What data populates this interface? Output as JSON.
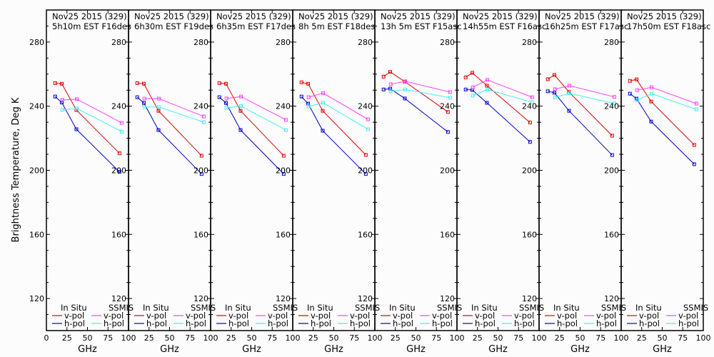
{
  "chart_data": {
    "type": "line",
    "ylabel": "Brightness Temperature, Deg K",
    "xlabel": "GHz",
    "xlim": [
      0,
      100
    ],
    "ylim": [
      100,
      300
    ],
    "xticks": [
      0,
      25,
      50,
      75,
      100
    ],
    "yticks": [
      120,
      160,
      200,
      240,
      280
    ],
    "grid": false,
    "legend": {
      "placement": "bottom",
      "group_insitu": "In Situ",
      "group_ssmis": "SSMIS",
      "entries": [
        {
          "group": "In Situ",
          "label": "v-pol",
          "color": "#e00000"
        },
        {
          "group": "In Situ",
          "label": "h-pol",
          "color": "#0000d0"
        },
        {
          "group": "SSMIS",
          "label": "v-pol",
          "color": "#ff40ff"
        },
        {
          "group": "SSMIS",
          "label": "h-pol",
          "color": "#40f0f0"
        }
      ]
    },
    "insitu_freqs": [
      10.65,
      18.7,
      36.5,
      89
    ],
    "ssmis_freqs": [
      19.35,
      37,
      91.65
    ],
    "panels": [
      {
        "title_line1": "Nov25 2015 (329)",
        "title_line2": "5h10m EST F16des",
        "series": [
          {
            "name": "In Situ v-pol",
            "color": "#e00000",
            "values": [
              254.4,
              254.0,
              237.6,
              210.6
            ]
          },
          {
            "name": "In Situ h-pol",
            "color": "#0000d0",
            "values": [
              246.0,
              242.3,
              225.6,
              199.0
            ]
          },
          {
            "name": "SSMIS v-pol",
            "color": "#ff40ff",
            "values": [
              243.9,
              244.4,
              229.6
            ]
          },
          {
            "name": "SSMIS h-pol",
            "color": "#40f0f0",
            "values": [
              237.6,
              238.6,
              224.2
            ]
          }
        ]
      },
      {
        "title_line1": "Nov25 2015 (329)",
        "title_line2": "6h30m EST F19des",
        "series": [
          {
            "name": "In Situ v-pol",
            "color": "#e00000",
            "values": [
              254.4,
              254.0,
              237.1,
              209.1
            ]
          },
          {
            "name": "In Situ h-pol",
            "color": "#0000d0",
            "values": [
              245.6,
              242.0,
              225.1,
              197.7
            ]
          },
          {
            "name": "SSMIS v-pol",
            "color": "#ff40ff",
            "values": [
              244.7,
              244.7,
              233.6
            ]
          },
          {
            "name": "SSMIS h-pol",
            "color": "#40f0f0",
            "values": [
              239.5,
              239.5,
              230.0
            ]
          }
        ]
      },
      {
        "title_line1": "Nov25 2015 (329)",
        "title_line2": "6h35m EST F17des",
        "series": [
          {
            "name": "In Situ v-pol",
            "color": "#e00000",
            "values": [
              254.4,
              254.0,
              237.1,
              209.1
            ]
          },
          {
            "name": "In Situ h-pol",
            "color": "#0000d0",
            "values": [
              245.6,
              242.0,
              225.1,
              197.7
            ]
          },
          {
            "name": "SSMIS v-pol",
            "color": "#ff40ff",
            "values": [
              244.8,
              246.0,
              231.5
            ]
          },
          {
            "name": "SSMIS h-pol",
            "color": "#40f0f0",
            "values": [
              239.0,
              240.1,
              225.1
            ]
          }
        ]
      },
      {
        "title_line1": "Nov25 2015 (329)",
        "title_line2": "8h 5m EST F18des",
        "series": [
          {
            "name": "In Situ v-pol",
            "color": "#e00000",
            "values": [
              254.9,
              254.0,
              237.1,
              209.6
            ]
          },
          {
            "name": "In Situ h-pol",
            "color": "#0000d0",
            "values": [
              246.0,
              241.6,
              224.7,
              197.7
            ]
          },
          {
            "name": "SSMIS v-pol",
            "color": "#ff40ff",
            "values": [
              245.6,
              248.2,
              231.8
            ]
          },
          {
            "name": "SSMIS h-pol",
            "color": "#40f0f0",
            "values": [
              239.9,
              242.1,
              225.6
            ]
          }
        ]
      },
      {
        "title_line1": "Nov25 2015 (329)",
        "title_line2": "13h 5m EST F15asc",
        "series": [
          {
            "name": "In Situ v-pol",
            "color": "#e00000",
            "values": [
              258.4,
              261.4,
              255.3,
              236.4
            ]
          },
          {
            "name": "In Situ h-pol",
            "color": "#0000d0",
            "values": [
              250.4,
              250.9,
              244.8,
              223.9
            ]
          },
          {
            "name": "SSMIS v-pol",
            "color": "#ff40ff",
            "values": [
              253.7,
              255.5,
              248.8
            ]
          },
          {
            "name": "SSMIS h-pol",
            "color": "#40f0f0",
            "values": [
              249.3,
              250.4,
              245.3
            ]
          }
        ]
      },
      {
        "title_line1": "Nov25 2015 (329)",
        "title_line2": "14h55m EST F16asc",
        "series": [
          {
            "name": "In Situ v-pol",
            "color": "#e00000",
            "values": [
              258.0,
              260.8,
              252.8,
              229.8
            ]
          },
          {
            "name": "In Situ h-pol",
            "color": "#0000d0",
            "values": [
              250.4,
              250.1,
              242.1,
              217.7
            ]
          },
          {
            "name": "SSMIS v-pol",
            "color": "#ff40ff",
            "values": [
              251.8,
              256.4,
              245.6
            ]
          },
          {
            "name": "SSMIS h-pol",
            "color": "#40f0f0",
            "values": [
              246.6,
              250.4,
              242.4
            ]
          }
        ]
      },
      {
        "title_line1": "Nov25 2015 (329)",
        "title_line2": "16h25m EST F17asc",
        "series": [
          {
            "name": "In Situ v-pol",
            "color": "#e00000",
            "values": [
              256.8,
              259.5,
              248.8,
              221.6
            ]
          },
          {
            "name": "In Situ h-pol",
            "color": "#0000d0",
            "values": [
              249.3,
              248.4,
              237.1,
              209.5
            ]
          },
          {
            "name": "SSMIS v-pol",
            "color": "#ff40ff",
            "values": [
              250.6,
              252.8,
              245.8
            ]
          },
          {
            "name": "SSMIS h-pol",
            "color": "#40f0f0",
            "values": [
              245.5,
              248.0,
              241.7
            ]
          }
        ]
      },
      {
        "title_line1": "Nov25 2015 (329)",
        "title_line2": "17h50m EST F18asc",
        "series": [
          {
            "name": "In Situ v-pol",
            "color": "#e00000",
            "values": [
              255.8,
              256.7,
              242.9,
              215.8
            ]
          },
          {
            "name": "In Situ h-pol",
            "color": "#0000d0",
            "values": [
              247.8,
              244.7,
              230.4,
              203.8
            ]
          },
          {
            "name": "SSMIS v-pol",
            "color": "#ff40ff",
            "values": [
              250.0,
              251.8,
              241.6
            ]
          },
          {
            "name": "SSMIS h-pol",
            "color": "#40f0f0",
            "values": [
              243.8,
              247.8,
              238.0
            ]
          }
        ]
      }
    ]
  }
}
